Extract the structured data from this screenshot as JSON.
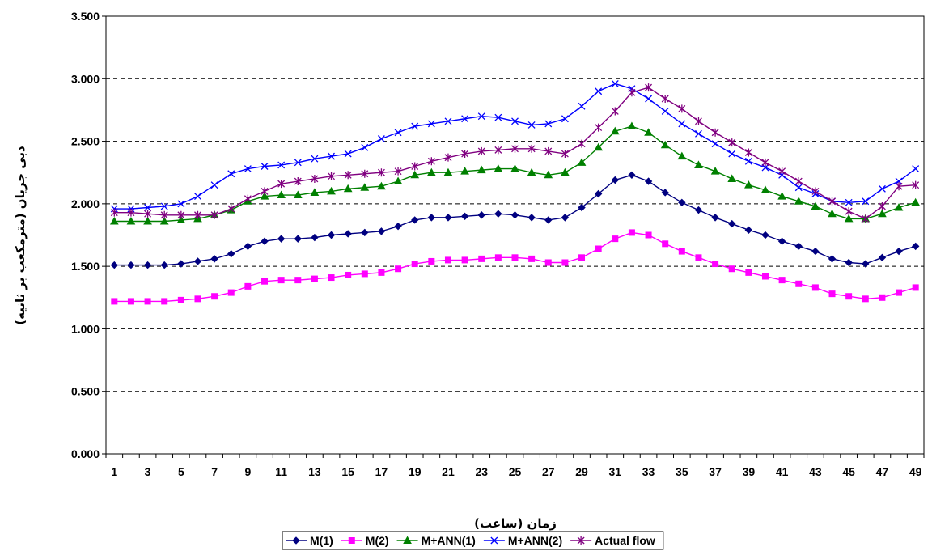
{
  "chart_data": {
    "type": "line",
    "title": "",
    "xlabel": "زمان (ساعت)",
    "ylabel": "دبی جریان (مترمکعب بر ثانیه)",
    "x": [
      1,
      2,
      3,
      4,
      5,
      6,
      7,
      8,
      9,
      10,
      11,
      12,
      13,
      14,
      15,
      16,
      17,
      18,
      19,
      20,
      21,
      22,
      23,
      24,
      25,
      26,
      27,
      28,
      29,
      30,
      31,
      32,
      33,
      34,
      35,
      36,
      37,
      38,
      39,
      40,
      41,
      42,
      43,
      44,
      45,
      46,
      47,
      48,
      49
    ],
    "x_tick_labels": [
      "1",
      "3",
      "5",
      "7",
      "9",
      "11",
      "13",
      "15",
      "17",
      "19",
      "21",
      "23",
      "25",
      "27",
      "29",
      "31",
      "33",
      "35",
      "37",
      "39",
      "41",
      "43",
      "45",
      "47",
      "49"
    ],
    "ylim": [
      0,
      3.5
    ],
    "y_tick_labels": [
      "0.000",
      "0.500",
      "1.000",
      "1.500",
      "2.000",
      "2.500",
      "3.000",
      "3.500"
    ],
    "grid": "horizontal dashed",
    "legend_position": "bottom",
    "series": [
      {
        "name": "M(1)",
        "color": "#000080",
        "marker": "diamond",
        "values": [
          1.51,
          1.51,
          1.51,
          1.51,
          1.52,
          1.54,
          1.56,
          1.6,
          1.66,
          1.7,
          1.72,
          1.72,
          1.73,
          1.75,
          1.76,
          1.77,
          1.78,
          1.82,
          1.87,
          1.89,
          1.89,
          1.9,
          1.91,
          1.92,
          1.91,
          1.89,
          1.87,
          1.89,
          1.97,
          2.08,
          2.19,
          2.23,
          2.18,
          2.09,
          2.01,
          1.95,
          1.89,
          1.84,
          1.79,
          1.75,
          1.7,
          1.66,
          1.62,
          1.56,
          1.53,
          1.52,
          1.57,
          1.62,
          1.66
        ]
      },
      {
        "name": "M(2)",
        "color": "#ff00ff",
        "marker": "square",
        "values": [
          1.22,
          1.22,
          1.22,
          1.22,
          1.23,
          1.24,
          1.26,
          1.29,
          1.34,
          1.38,
          1.39,
          1.39,
          1.4,
          1.41,
          1.43,
          1.44,
          1.45,
          1.48,
          1.52,
          1.54,
          1.55,
          1.55,
          1.56,
          1.57,
          1.57,
          1.56,
          1.53,
          1.53,
          1.57,
          1.64,
          1.72,
          1.77,
          1.75,
          1.68,
          1.62,
          1.57,
          1.52,
          1.48,
          1.45,
          1.42,
          1.39,
          1.36,
          1.33,
          1.28,
          1.26,
          1.24,
          1.25,
          1.29,
          1.33
        ]
      },
      {
        "name": "M+ANN(1)",
        "color": "#008000",
        "marker": "triangle",
        "values": [
          1.86,
          1.86,
          1.86,
          1.86,
          1.87,
          1.88,
          1.91,
          1.95,
          2.02,
          2.06,
          2.07,
          2.07,
          2.09,
          2.1,
          2.12,
          2.13,
          2.14,
          2.18,
          2.23,
          2.25,
          2.25,
          2.26,
          2.27,
          2.28,
          2.28,
          2.25,
          2.23,
          2.25,
          2.33,
          2.45,
          2.58,
          2.62,
          2.57,
          2.47,
          2.38,
          2.31,
          2.26,
          2.2,
          2.15,
          2.11,
          2.06,
          2.02,
          1.98,
          1.92,
          1.88,
          1.88,
          1.92,
          1.97,
          2.01
        ]
      },
      {
        "name": "M+ANN(2)",
        "color": "#0000ff",
        "marker": "x",
        "values": [
          1.96,
          1.96,
          1.97,
          1.98,
          2.0,
          2.06,
          2.15,
          2.24,
          2.28,
          2.3,
          2.31,
          2.33,
          2.36,
          2.38,
          2.4,
          2.45,
          2.52,
          2.57,
          2.62,
          2.64,
          2.66,
          2.68,
          2.7,
          2.69,
          2.66,
          2.63,
          2.64,
          2.68,
          2.78,
          2.9,
          2.96,
          2.92,
          2.84,
          2.74,
          2.64,
          2.56,
          2.48,
          2.4,
          2.34,
          2.29,
          2.23,
          2.13,
          2.08,
          2.02,
          2.01,
          2.02,
          2.12,
          2.18,
          2.28
        ]
      },
      {
        "name": "Actual flow",
        "color": "#800080",
        "marker": "asterisk",
        "values": [
          1.93,
          1.93,
          1.92,
          1.91,
          1.91,
          1.91,
          1.91,
          1.96,
          2.04,
          2.1,
          2.16,
          2.18,
          2.2,
          2.22,
          2.23,
          2.24,
          2.25,
          2.26,
          2.3,
          2.34,
          2.37,
          2.4,
          2.42,
          2.43,
          2.44,
          2.44,
          2.42,
          2.4,
          2.48,
          2.61,
          2.74,
          2.89,
          2.93,
          2.84,
          2.76,
          2.66,
          2.57,
          2.49,
          2.41,
          2.33,
          2.26,
          2.18,
          2.1,
          2.02,
          1.94,
          1.88,
          1.98,
          2.14,
          2.15
        ]
      }
    ]
  }
}
